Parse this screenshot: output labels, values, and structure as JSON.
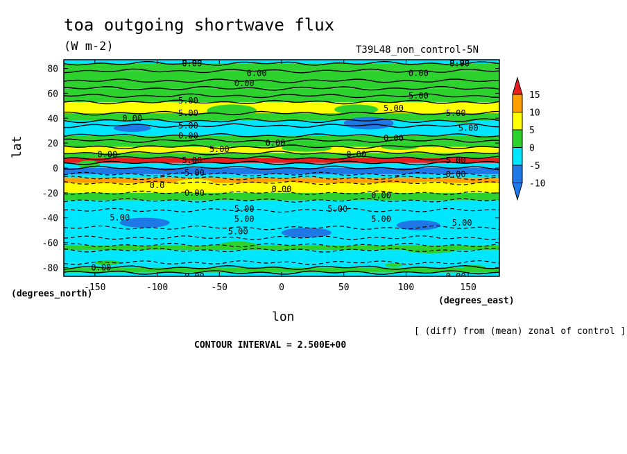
{
  "title": "toa outgoing shortwave flux",
  "units": "(W m-2)",
  "run_label": "T39L48_non_control-5N",
  "y_unit_label": "(degrees_north)",
  "x_unit_label": "(degrees_east)",
  "note": "[ (diff) from (mean) zonal of control ]",
  "contour_interval": "CONTOUR INTERVAL = 2.500E+00",
  "colors": {
    "c_lt_m10": "#1e78e6",
    "c_m10_m5": "#1e78e6",
    "c_m5_0": "#00e6ff",
    "c_0_5": "#2ed22e",
    "c_5_10": "#ffff00",
    "c_10_15": "#ffa000",
    "c_gt_15": "#e61e1e"
  },
  "chart_data": {
    "type": "heatmap",
    "xlabel": "lon",
    "ylabel": "lat",
    "xlim": [
      -175,
      175
    ],
    "ylim": [
      -87,
      87
    ],
    "x_ticks": [
      -150,
      -100,
      -50,
      0,
      50,
      100,
      150
    ],
    "y_ticks": [
      -80,
      -60,
      -40,
      -20,
      0,
      20,
      40,
      60,
      80
    ],
    "x_tick_labels": [
      "-150",
      "-100",
      "-50",
      "0",
      "50",
      "100",
      "150"
    ],
    "y_tick_labels": [
      "-80",
      "-60",
      "-40",
      "-20",
      "0",
      "20",
      "40",
      "60",
      "80"
    ],
    "colorbar": {
      "levels": [
        -10,
        -5,
        0,
        5,
        10,
        15
      ],
      "labels": [
        "15",
        "10",
        "5",
        "0",
        "-5",
        "-10"
      ],
      "extend": "both"
    },
    "zonal_bands": [
      {
        "lat_from": 87,
        "lat_to": 84,
        "value": -2
      },
      {
        "lat_from": 84,
        "lat_to": 78,
        "value": 1
      },
      {
        "lat_from": 78,
        "lat_to": 70,
        "value": 2
      },
      {
        "lat_from": 70,
        "lat_to": 64,
        "value": 1
      },
      {
        "lat_from": 64,
        "lat_to": 58,
        "value": 2
      },
      {
        "lat_from": 58,
        "lat_to": 53,
        "value": 4
      },
      {
        "lat_from": 53,
        "lat_to": 44,
        "value": 7
      },
      {
        "lat_from": 44,
        "lat_to": 38,
        "value": 2
      },
      {
        "lat_from": 38,
        "lat_to": 34,
        "value": -1
      },
      {
        "lat_from": 34,
        "lat_to": 26,
        "value": -4
      },
      {
        "lat_from": 26,
        "lat_to": 22,
        "value": 1
      },
      {
        "lat_from": 22,
        "lat_to": 17,
        "value": 4
      },
      {
        "lat_from": 17,
        "lat_to": 12,
        "value": 7
      },
      {
        "lat_from": 12,
        "lat_to": 8,
        "value": 2
      },
      {
        "lat_from": 8,
        "lat_to": 4,
        "value": 16
      },
      {
        "lat_from": 4,
        "lat_to": 0,
        "value": -2
      },
      {
        "lat_from": 0,
        "lat_to": -5,
        "value": -11
      },
      {
        "lat_from": -5,
        "lat_to": -8,
        "value": -3
      },
      {
        "lat_from": -8,
        "lat_to": -12,
        "value": 12
      },
      {
        "lat_from": -12,
        "lat_to": -20,
        "value": 7
      },
      {
        "lat_from": -20,
        "lat_to": -26,
        "value": 2
      },
      {
        "lat_from": -26,
        "lat_to": -34,
        "value": -2
      },
      {
        "lat_from": -34,
        "lat_to": -48,
        "value": -4
      },
      {
        "lat_from": -48,
        "lat_to": -56,
        "value": -3
      },
      {
        "lat_from": -56,
        "lat_to": -62,
        "value": -4
      },
      {
        "lat_from": -62,
        "lat_to": -66,
        "value": 1
      },
      {
        "lat_from": -66,
        "lat_to": -76,
        "value": -3
      },
      {
        "lat_from": -76,
        "lat_to": -80,
        "value": -2
      },
      {
        "lat_from": -80,
        "lat_to": -84,
        "value": 1
      },
      {
        "lat_from": -84,
        "lat_to": -87,
        "value": -2
      }
    ],
    "patches": [
      {
        "lon": -155,
        "lat": 3,
        "w": 18,
        "h": 6,
        "value": 3
      },
      {
        "lon": -70,
        "lat": -12,
        "w": 30,
        "h": 6,
        "value": 7
      },
      {
        "lon": 0,
        "lat": -14,
        "w": 40,
        "h": 6,
        "value": 7
      },
      {
        "lon": 120,
        "lat": -14,
        "w": 40,
        "h": 6,
        "value": 7
      },
      {
        "lon": -40,
        "lat": 46,
        "w": 40,
        "h": 10,
        "value": 3
      },
      {
        "lon": 60,
        "lat": 47,
        "w": 35,
        "h": 8,
        "value": 3
      },
      {
        "lon": 145,
        "lat": 40,
        "w": 20,
        "h": 8,
        "value": 3
      },
      {
        "lon": 20,
        "lat": 16,
        "w": 40,
        "h": 6,
        "value": 2
      },
      {
        "lon": 95,
        "lat": 17,
        "w": 30,
        "h": 5,
        "value": 3
      },
      {
        "lon": 70,
        "lat": 36,
        "w": 40,
        "h": 10,
        "value": -6
      },
      {
        "lon": -120,
        "lat": 32,
        "w": 30,
        "h": 6,
        "value": -6
      },
      {
        "lon": 20,
        "lat": -52,
        "w": 40,
        "h": 8,
        "value": -6
      },
      {
        "lon": -110,
        "lat": -44,
        "w": 40,
        "h": 8,
        "value": -6
      },
      {
        "lon": 110,
        "lat": -46,
        "w": 35,
        "h": 8,
        "value": -6
      },
      {
        "lon": -35,
        "lat": -62,
        "w": 30,
        "h": 6,
        "value": 2
      },
      {
        "lon": 120,
        "lat": -66,
        "w": 40,
        "h": 5,
        "value": 2
      },
      {
        "lon": -140,
        "lat": -76,
        "w": 20,
        "h": 4,
        "value": 2
      },
      {
        "lon": 90,
        "lat": -78,
        "w": 14,
        "h": 3,
        "value": 2
      },
      {
        "lon": 155,
        "lat": -80,
        "w": 18,
        "h": 4,
        "value": 2
      }
    ],
    "contour_labels": [
      {
        "lon": -72,
        "lat": 86,
        "text": "0.00"
      },
      {
        "lon": -72,
        "lat": 84,
        "text": "0.00"
      },
      {
        "lon": 143,
        "lat": 86,
        "text": "0.00"
      },
      {
        "lon": 143,
        "lat": 84,
        "text": "0.00"
      },
      {
        "lon": -20,
        "lat": 76,
        "text": "0.00"
      },
      {
        "lon": 110,
        "lat": 76,
        "text": "0.00"
      },
      {
        "lon": -30,
        "lat": 68,
        "text": "0.00"
      },
      {
        "lon": -75,
        "lat": 54,
        "text": "5.00"
      },
      {
        "lon": 110,
        "lat": 58,
        "text": "5.00"
      },
      {
        "lon": -75,
        "lat": 44,
        "text": "5.00"
      },
      {
        "lon": 90,
        "lat": 48,
        "text": "5.00"
      },
      {
        "lon": 140,
        "lat": 44,
        "text": "5.00"
      },
      {
        "lon": -120,
        "lat": 40,
        "text": "0.00"
      },
      {
        "lon": -75,
        "lat": 34,
        "text": "5.00"
      },
      {
        "lon": 150,
        "lat": 32,
        "text": "5.00"
      },
      {
        "lon": -75,
        "lat": 26,
        "text": "0.00"
      },
      {
        "lon": 90,
        "lat": 24,
        "text": "0.00"
      },
      {
        "lon": -5,
        "lat": 20,
        "text": "0.00"
      },
      {
        "lon": -50,
        "lat": 15,
        "text": "5.00"
      },
      {
        "lon": -140,
        "lat": 11,
        "text": "0.00"
      },
      {
        "lon": 60,
        "lat": 11,
        "text": "0.00"
      },
      {
        "lon": -72,
        "lat": 6,
        "text": "5.00"
      },
      {
        "lon": 140,
        "lat": 6,
        "text": "5.00"
      },
      {
        "lon": -70,
        "lat": -4,
        "text": "5.00"
      },
      {
        "lon": 140,
        "lat": -5,
        "text": "0.00"
      },
      {
        "lon": -100,
        "lat": -14,
        "text": "0.0"
      },
      {
        "lon": -70,
        "lat": -20,
        "text": "0.00"
      },
      {
        "lon": 0,
        "lat": -17,
        "text": "0.00"
      },
      {
        "lon": 80,
        "lat": -22,
        "text": "0.00"
      },
      {
        "lon": -130,
        "lat": -40,
        "text": "5.00"
      },
      {
        "lon": -30,
        "lat": -33,
        "text": "5.00"
      },
      {
        "lon": 45,
        "lat": -33,
        "text": "5.00"
      },
      {
        "lon": -30,
        "lat": -41,
        "text": "5.00"
      },
      {
        "lon": 80,
        "lat": -41,
        "text": "5.00"
      },
      {
        "lon": 145,
        "lat": -44,
        "text": "5.00"
      },
      {
        "lon": -35,
        "lat": -51,
        "text": "5.00"
      },
      {
        "lon": -145,
        "lat": -80,
        "text": "0.00"
      },
      {
        "lon": -70,
        "lat": -87,
        "text": "0.00"
      },
      {
        "lon": 140,
        "lat": -87,
        "text": "0.00"
      }
    ]
  }
}
